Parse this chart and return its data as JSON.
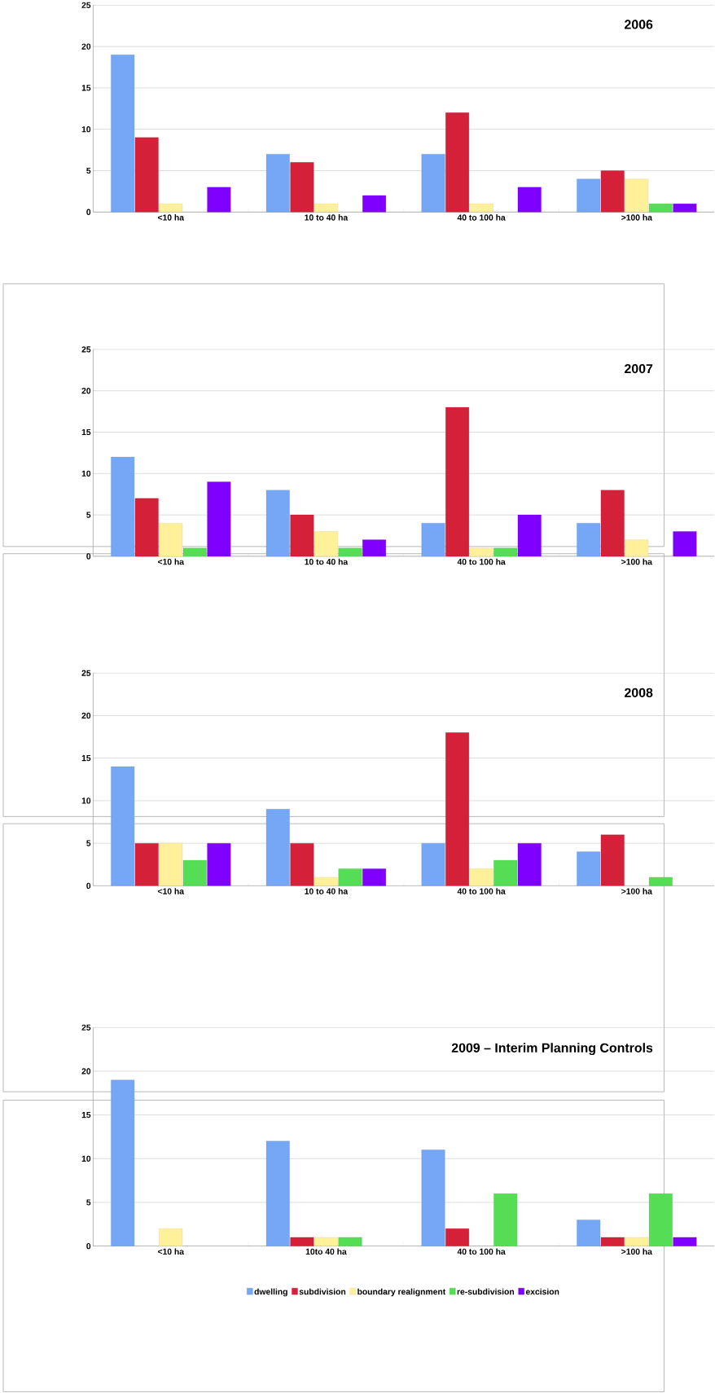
{
  "chart_data": [
    {
      "type": "bar",
      "title": "2006",
      "categories": [
        "<10 ha",
        "10 to 40 ha",
        "40 to 100 ha",
        ">100 ha"
      ],
      "ylim": [
        0,
        25
      ],
      "yticks": [
        0,
        5,
        10,
        15,
        20,
        25
      ],
      "grid": "y",
      "series": [
        {
          "color": "#75a7f7",
          "values": [
            19,
            7,
            7,
            4
          ]
        },
        {
          "color": "#d42038",
          "values": [
            9,
            6,
            12,
            5
          ]
        },
        {
          "color": "#fff09a",
          "values": [
            1,
            1,
            1,
            4
          ]
        },
        {
          "color": "#55dd55",
          "values": [
            null,
            null,
            null,
            1
          ]
        },
        {
          "color": "#7f00ff",
          "values": [
            3,
            2,
            3,
            1
          ]
        }
      ]
    },
    {
      "type": "bar",
      "title": "2007",
      "categories": [
        "<10 ha",
        "10 to 40 ha",
        "40 to 100 ha",
        ">100 ha"
      ],
      "ylim": [
        0,
        25
      ],
      "yticks": [
        0,
        5,
        10,
        15,
        20,
        25
      ],
      "grid": "y",
      "series": [
        {
          "color": "#75a7f7",
          "values": [
            12,
            8,
            4,
            4
          ]
        },
        {
          "color": "#d42038",
          "values": [
            7,
            5,
            18,
            8
          ]
        },
        {
          "color": "#fff09a",
          "values": [
            4,
            3,
            1,
            2
          ]
        },
        {
          "color": "#55dd55",
          "values": [
            1,
            1,
            1,
            null
          ]
        },
        {
          "color": "#7f00ff",
          "values": [
            9,
            2,
            5,
            3
          ]
        }
      ]
    },
    {
      "type": "bar",
      "title": "2008",
      "categories": [
        "<10 ha",
        "10 to 40 ha",
        "40 to 100 ha",
        ">100 ha"
      ],
      "ylim": [
        0,
        25
      ],
      "yticks": [
        0,
        5,
        10,
        15,
        20,
        25
      ],
      "grid": "y",
      "series": [
        {
          "color": "#75a7f7",
          "values": [
            14,
            9,
            5,
            4
          ]
        },
        {
          "color": "#d42038",
          "values": [
            5,
            5,
            18,
            6
          ]
        },
        {
          "color": "#fff09a",
          "values": [
            5,
            1,
            2,
            null
          ]
        },
        {
          "color": "#55dd55",
          "values": [
            3,
            2,
            3,
            1
          ]
        },
        {
          "color": "#7f00ff",
          "values": [
            5,
            2,
            5,
            null
          ]
        }
      ]
    },
    {
      "type": "bar",
      "title": "2009 – Interim Planning Controls",
      "categories": [
        "<10 ha",
        "10to 40 ha",
        "40 to 100 ha",
        ">100 ha"
      ],
      "ylim": [
        0,
        25
      ],
      "yticks": [
        0,
        5,
        10,
        15,
        20,
        25
      ],
      "grid": "y",
      "legend": "bottom",
      "series": [
        {
          "name": "dwelling",
          "color": "#75a7f7",
          "values": [
            19,
            12,
            11,
            3
          ]
        },
        {
          "name": "subdivision",
          "color": "#d42038",
          "values": [
            null,
            1,
            2,
            1
          ]
        },
        {
          "name": "boundary realignment",
          "color": "#fff09a",
          "values": [
            2,
            1,
            null,
            1
          ]
        },
        {
          "name": "re-subdivision",
          "color": "#55dd55",
          "values": [
            null,
            1,
            6,
            6
          ]
        },
        {
          "name": "excision",
          "color": "#7f00ff",
          "values": [
            null,
            null,
            null,
            1
          ]
        }
      ]
    }
  ]
}
